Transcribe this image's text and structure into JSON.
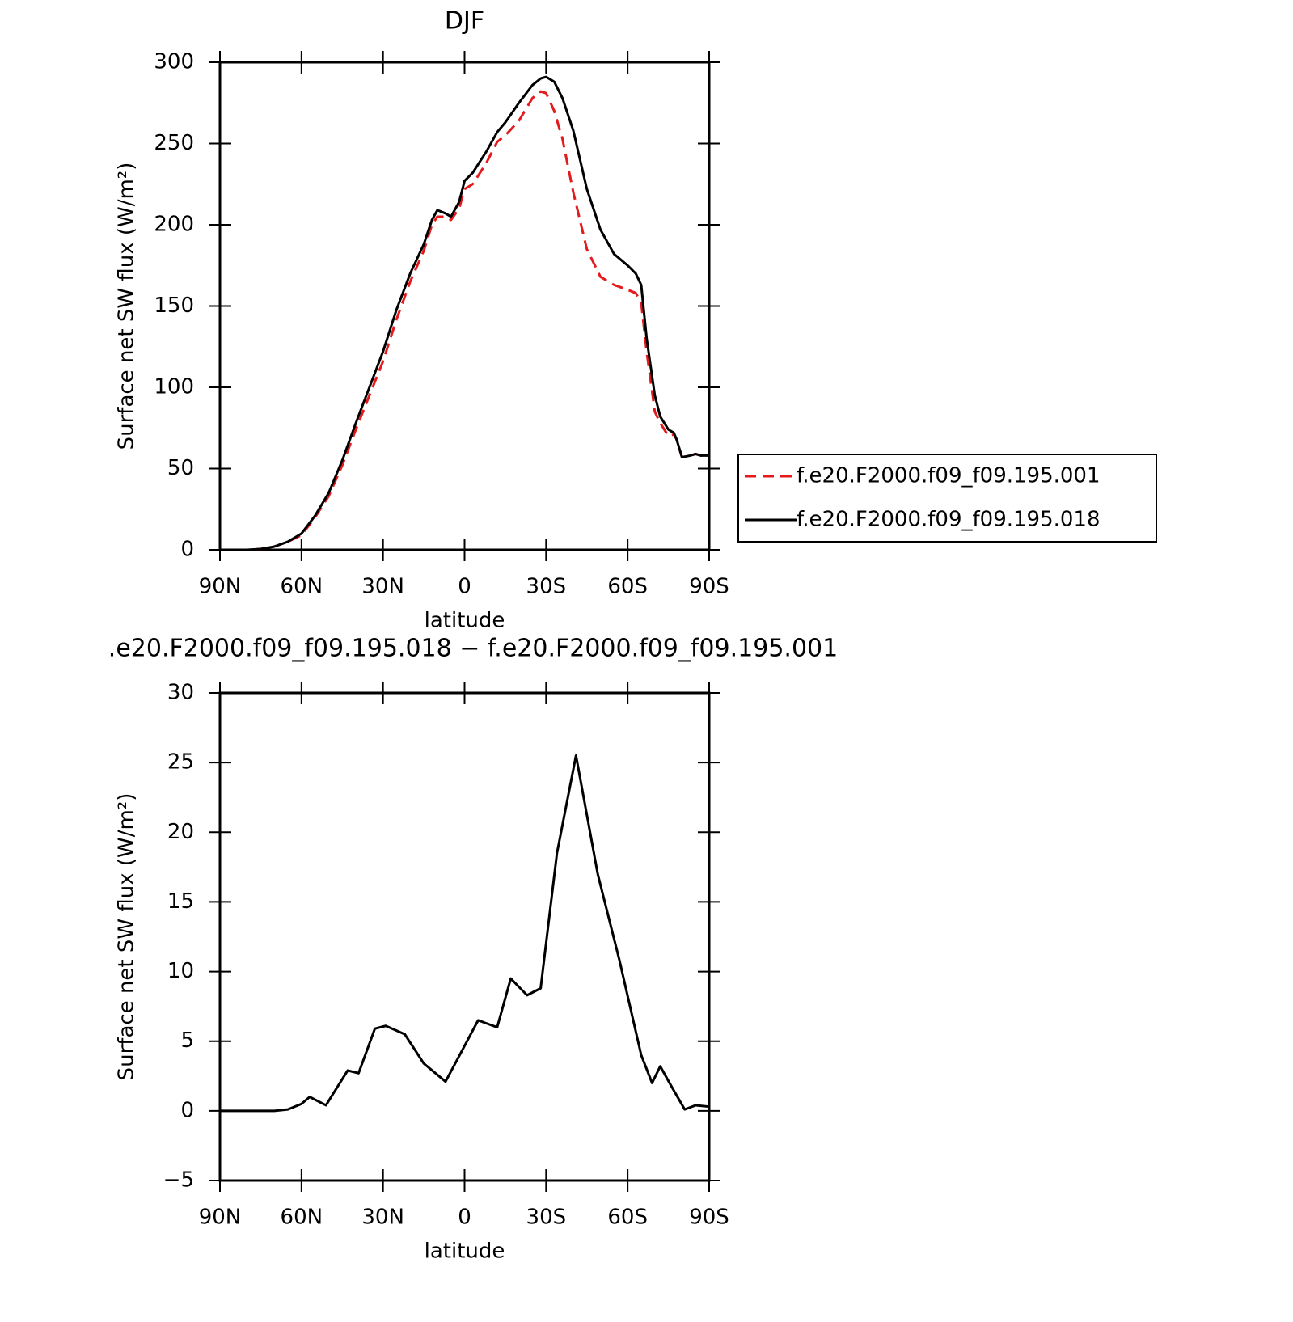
{
  "chart_data": [
    {
      "type": "line",
      "title": "DJF",
      "x_label": "latitude",
      "y_label": "Surface net SW flux (W/m²)",
      "xlim": [
        90,
        -90
      ],
      "xticks": [
        {
          "value": 90,
          "label": "90N"
        },
        {
          "value": 60,
          "label": "60N"
        },
        {
          "value": 30,
          "label": "30N"
        },
        0,
        {
          "value": -30,
          "label": "30S"
        },
        {
          "value": -60,
          "label": "60S"
        },
        {
          "value": -90,
          "label": "90S"
        }
      ],
      "ylim": [
        0,
        300
      ],
      "yticks": [
        0,
        50,
        100,
        150,
        200,
        250,
        300
      ],
      "legend_position": "right",
      "x": [
        90,
        85,
        80,
        75,
        70,
        65,
        60,
        55,
        50,
        45,
        40,
        35,
        30,
        25,
        20,
        15,
        12,
        10,
        7,
        5,
        2,
        0,
        -3,
        -8,
        -12,
        -15,
        -20,
        -25,
        -28,
        -30,
        -33,
        -36,
        -40,
        -45,
        -50,
        -55,
        -60,
        -63,
        -65,
        -67,
        -70,
        -72,
        -75,
        -77,
        -78,
        -80,
        -83,
        -85,
        -87,
        -90
      ],
      "series": [
        {
          "name": "f.e20.F2000.f09_f09.195.001",
          "color": "#e41a1c",
          "dash": true,
          "values": [
            0,
            0,
            0,
            0.5,
            2,
            5,
            9,
            20,
            33,
            52,
            74,
            95,
            116,
            142,
            165,
            184,
            200,
            205,
            205,
            203,
            210,
            222,
            225,
            238,
            251,
            255,
            264,
            278,
            282,
            281,
            270,
            253,
            220,
            185,
            168,
            163,
            160,
            158,
            152,
            122,
            85,
            78,
            70,
            71,
            68,
            57,
            58,
            59,
            58,
            58
          ]
        },
        {
          "name": "f.e20.F2000.f09_f09.195.018",
          "color": "#000000",
          "dash": false,
          "values": [
            0,
            0,
            0,
            0.5,
            2,
            5,
            10,
            21,
            35,
            55,
            78,
            100,
            122,
            148,
            170,
            188,
            203,
            209,
            207,
            205,
            214,
            227,
            232,
            245,
            257,
            263,
            275,
            286,
            290,
            291,
            288,
            278,
            258,
            222,
            197,
            182,
            175,
            170,
            163,
            130,
            95,
            82,
            74,
            72,
            68,
            57,
            58,
            59,
            58,
            58
          ]
        }
      ]
    },
    {
      "type": "line",
      "title": ".e20.F2000.f09_f09.195.018 − f.e20.F2000.f09_f09.195.001",
      "x_label": "latitude",
      "y_label": "Surface net SW flux (W/m²)",
      "xlim": [
        90,
        -90
      ],
      "xticks": [
        {
          "value": 90,
          "label": "90N"
        },
        {
          "value": 60,
          "label": "60N"
        },
        {
          "value": 30,
          "label": "30N"
        },
        0,
        {
          "value": -30,
          "label": "30S"
        },
        {
          "value": -60,
          "label": "60S"
        },
        {
          "value": -90,
          "label": "90S"
        }
      ],
      "ylim": [
        -5,
        30
      ],
      "yticks": [
        {
          "value": -5,
          "label": "−5"
        },
        0,
        5,
        10,
        15,
        20,
        25,
        30
      ],
      "x": [
        90,
        80,
        70,
        65,
        60,
        57,
        51,
        43,
        39,
        33,
        29,
        22,
        15,
        7,
        1,
        -5,
        -12,
        -17,
        -23,
        -28,
        -34,
        -41,
        -49,
        -57,
        -65,
        -69,
        -72,
        -76,
        -81,
        -85,
        -90
      ],
      "series": [
        {
          "color": "#000000",
          "dash": false,
          "values": [
            0,
            0,
            0,
            0.1,
            0.5,
            1.0,
            0.4,
            2.9,
            2.7,
            5.9,
            6.1,
            5.5,
            3.4,
            2.1,
            4.3,
            6.5,
            6.0,
            9.5,
            8.3,
            8.8,
            18.5,
            25.5,
            17,
            10.8,
            4,
            2,
            3.2,
            1.8,
            0.1,
            0.4,
            0.3
          ]
        }
      ]
    }
  ]
}
